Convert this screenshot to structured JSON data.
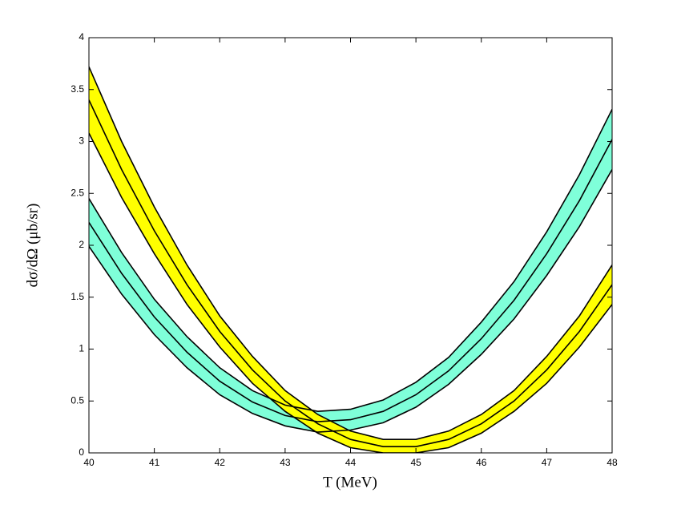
{
  "chart_data": {
    "type": "band",
    "x_label": "T (MeV)",
    "y_label": "dσ/dΩ (μb/sr)",
    "x": [
      40,
      40.5,
      41,
      41.5,
      42,
      42.5,
      43,
      43.5,
      44,
      44.5,
      45,
      45.5,
      46,
      46.5,
      47,
      47.5,
      48
    ],
    "series": [
      {
        "color": "#7fffd9",
        "values": [
          2.22,
          1.73,
          1.31,
          0.97,
          0.69,
          0.49,
          0.36,
          0.3,
          0.32,
          0.4,
          0.56,
          0.79,
          1.1,
          1.47,
          1.92,
          2.43,
          3.02
        ],
        "upper": [
          2.45,
          1.93,
          1.48,
          1.12,
          0.82,
          0.6,
          0.46,
          0.4,
          0.42,
          0.51,
          0.68,
          0.92,
          1.26,
          1.65,
          2.13,
          2.68,
          3.31
        ],
        "lower": [
          1.99,
          1.53,
          1.14,
          0.82,
          0.56,
          0.38,
          0.26,
          0.2,
          0.22,
          0.29,
          0.44,
          0.66,
          0.95,
          1.29,
          1.71,
          2.18,
          2.73
        ]
      },
      {
        "color": "#ffff00",
        "values": [
          3.4,
          2.73,
          2.14,
          1.62,
          1.17,
          0.8,
          0.5,
          0.28,
          0.13,
          0.06,
          0.06,
          0.13,
          0.28,
          0.5,
          0.8,
          1.17,
          1.62
        ],
        "upper": [
          3.72,
          3.0,
          2.37,
          1.81,
          1.32,
          0.93,
          0.6,
          0.37,
          0.21,
          0.13,
          0.13,
          0.21,
          0.37,
          0.6,
          0.93,
          1.32,
          1.81
        ],
        "lower": [
          3.08,
          2.46,
          1.92,
          1.43,
          1.02,
          0.67,
          0.4,
          0.19,
          0.05,
          0,
          0,
          0.05,
          0.19,
          0.4,
          0.67,
          1.02,
          1.43
        ]
      }
    ],
    "xlim": [
      40,
      48
    ],
    "ylim": [
      0,
      4
    ],
    "xticks": [
      40,
      41,
      42,
      43,
      44,
      45,
      46,
      47,
      48
    ],
    "yticks": [
      0,
      0.5,
      1,
      1.5,
      2,
      2.5,
      3,
      3.5,
      4
    ],
    "line_color": "#000000"
  }
}
